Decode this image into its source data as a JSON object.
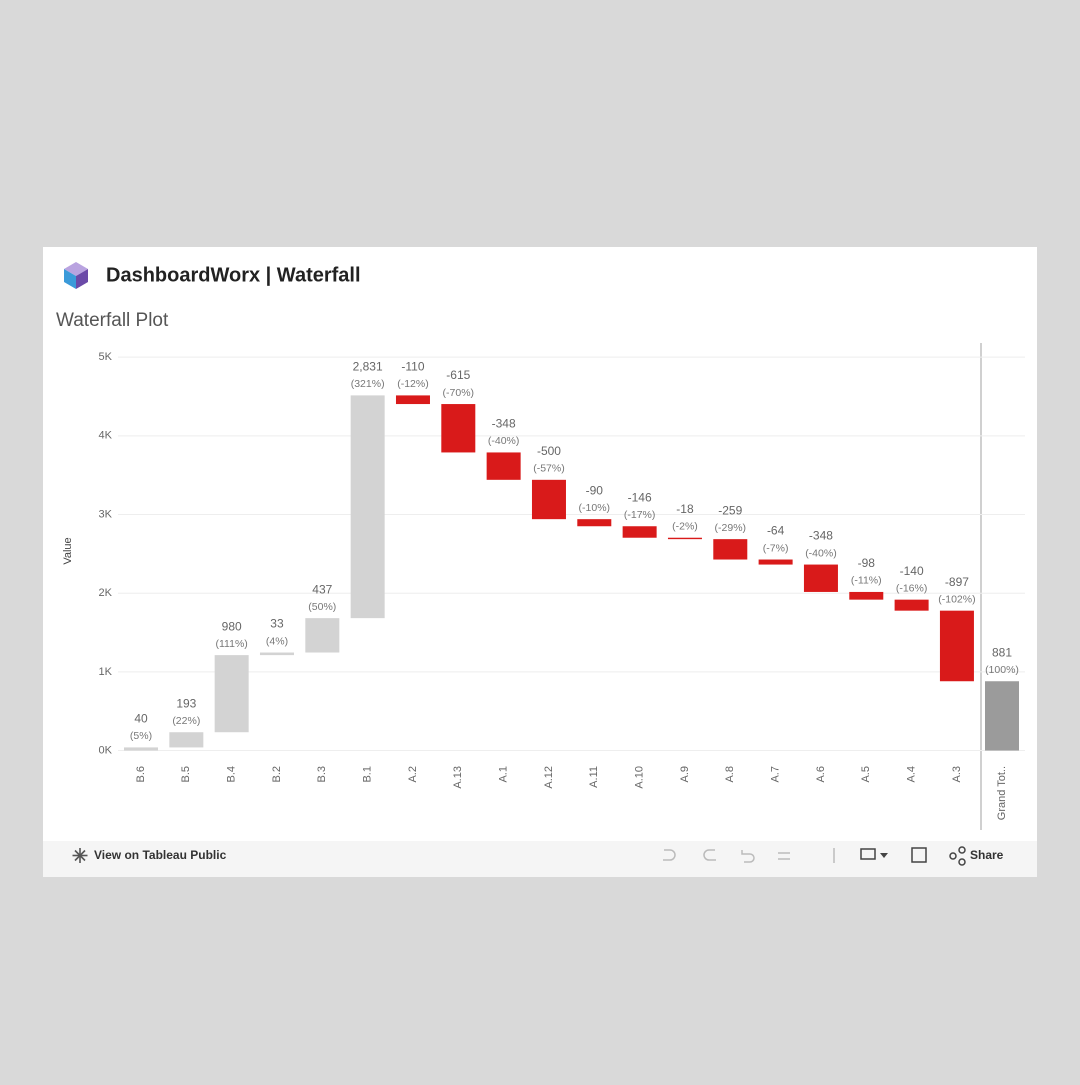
{
  "header": {
    "title": "DashboardWorx | Waterfall"
  },
  "chart_data": {
    "type": "waterfall",
    "title": "Waterfall Plot",
    "y_label": "Value",
    "categories": [
      "B.6",
      "B.5",
      "B.4",
      "B.2",
      "B.3",
      "B.1",
      "A.2",
      "A.13",
      "A.1",
      "A.12",
      "A.11",
      "A.10",
      "A.9",
      "A.8",
      "A.7",
      "A.6",
      "A.5",
      "A.4",
      "A.3"
    ],
    "values": [
      40,
      193,
      980,
      33,
      437,
      2831,
      -110,
      -615,
      -348,
      -500,
      -90,
      -146,
      -18,
      -259,
      -64,
      -348,
      -98,
      -140,
      -897
    ],
    "value_labels": [
      "40",
      "193",
      "980",
      "33",
      "437",
      "2,831",
      "-110",
      "-615",
      "-348",
      "-500",
      "-90",
      "-146",
      "-18",
      "-259",
      "-64",
      "-348",
      "-98",
      "-140",
      "-897"
    ],
    "share_labels": [
      "(5%)",
      "(22%)",
      "(111%)",
      "(4%)",
      "(50%)",
      "(321%)",
      "(-12%)",
      "(-70%)",
      "(-40%)",
      "(-57%)",
      "(-10%)",
      "(-17%)",
      "(-2%)",
      "(-29%)",
      "(-7%)",
      "(-40%)",
      "(-11%)",
      "(-16%)",
      "(-102%)"
    ],
    "total_category": "Grand Tot..",
    "total_value": 881,
    "total_share_label": "(100%)",
    "colors": {
      "increase": "#d3d3d3",
      "decrease": "#d91a1a",
      "total": "#9b9b9b"
    },
    "ylim": [
      -120,
      5180
    ],
    "yticks": [
      {
        "value": 0,
        "label": "0K"
      },
      {
        "value": 1000,
        "label": "1K"
      },
      {
        "value": 2000,
        "label": "2K"
      },
      {
        "value": 3000,
        "label": "3K"
      },
      {
        "value": 4000,
        "label": "4K"
      },
      {
        "value": 5000,
        "label": "5K"
      }
    ],
    "grid": true
  },
  "footer": {
    "link": "View on Tableau Public",
    "share": "Share"
  }
}
